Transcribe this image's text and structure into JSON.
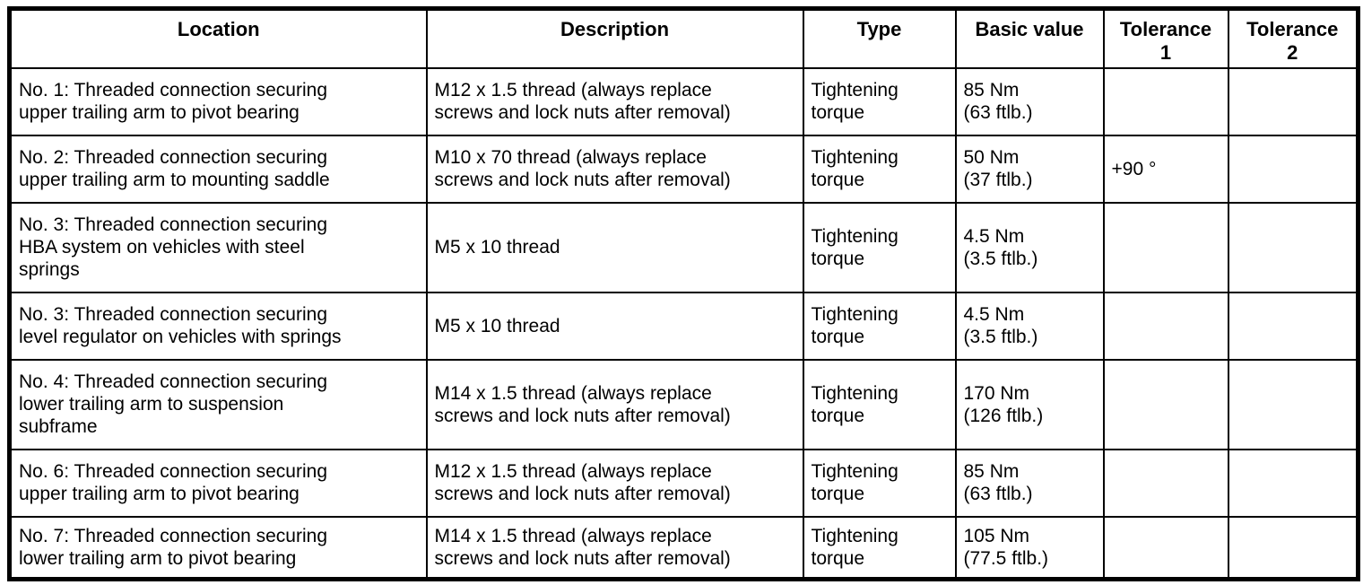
{
  "table": {
    "columns": [
      "Location",
      "Description",
      "Type",
      "Basic value",
      "Tolerance\n1",
      "Tolerance\n2"
    ],
    "rows": [
      {
        "location": "No. 1: Threaded connection securing\nupper trailing arm to pivot bearing",
        "description": "M12 x 1.5 thread (always replace\nscrews and lock nuts after removal)",
        "type": "Tightening\ntorque",
        "basic_value": "85 Nm\n(63 ftlb.)",
        "tolerance_1": "",
        "tolerance_2": ""
      },
      {
        "location": "No. 2: Threaded connection securing\nupper trailing arm to mounting saddle",
        "description": "M10 x 70 thread (always replace\nscrews and lock nuts after removal)",
        "type": "Tightening\ntorque",
        "basic_value": "50 Nm\n(37 ftlb.)",
        "tolerance_1": "+90 °",
        "tolerance_2": ""
      },
      {
        "location": "No. 3: Threaded connection securing\nHBA system on vehicles with steel\nsprings",
        "description": "M5 x 10 thread",
        "type": "Tightening\ntorque",
        "basic_value": "4.5 Nm\n(3.5 ftlb.)",
        "tolerance_1": "",
        "tolerance_2": ""
      },
      {
        "location": "No. 3: Threaded connection securing\nlevel regulator on vehicles with springs",
        "description": "M5 x 10 thread",
        "type": "Tightening\ntorque",
        "basic_value": "4.5 Nm\n(3.5 ftlb.)",
        "tolerance_1": "",
        "tolerance_2": ""
      },
      {
        "location": "No. 4: Threaded connection securing\nlower trailing arm to suspension\nsubframe",
        "description": "M14 x 1.5 thread (always replace\nscrews and lock nuts after removal)",
        "type": "Tightening\ntorque",
        "basic_value": "170 Nm\n(126 ftlb.)",
        "tolerance_1": "",
        "tolerance_2": ""
      },
      {
        "location": "No. 6: Threaded connection securing\nupper trailing arm to pivot bearing",
        "description": "M12 x 1.5 thread (always replace\nscrews and lock nuts after removal)",
        "type": "Tightening\ntorque",
        "basic_value": "85 Nm\n(63 ftlb.)",
        "tolerance_1": "",
        "tolerance_2": ""
      },
      {
        "location": "No. 7: Threaded connection securing\nlower trailing arm to pivot bearing",
        "description": "M14 x 1.5 thread (always replace\nscrews and lock nuts after removal)",
        "type": "Tightening\ntorque",
        "basic_value": "105 Nm\n(77.5 ftlb.)",
        "tolerance_1": "",
        "tolerance_2": ""
      }
    ]
  }
}
